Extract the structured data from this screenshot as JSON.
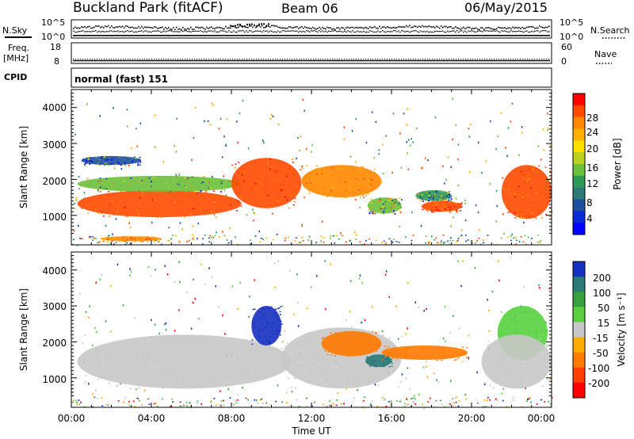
{
  "header": {
    "site": "Buckland Park (fitACF)",
    "beam": "Beam 06",
    "date": "06/May/2015"
  },
  "nsky": {
    "label": "N.Sky",
    "ticks": [
      "10^5",
      "10^0"
    ],
    "right_label": "N.Search",
    "right_ticks": [
      "10^5",
      "10^0"
    ]
  },
  "freq": {
    "label_line1": "Freq.",
    "label_line2": "[MHz]",
    "ticks": [
      "18",
      "8"
    ],
    "right_label": "Nave",
    "right_ticks": [
      "60",
      "0"
    ]
  },
  "cpid": {
    "label": "CPID",
    "text": "normal (fast) 151"
  },
  "panels": {
    "ylabel": "Slant Range [km]",
    "yticks": [
      "4000",
      "3000",
      "2000",
      "1000"
    ],
    "xticks": [
      "00:00",
      "04:00",
      "08:00",
      "12:00",
      "16:00",
      "20:00",
      "00:00"
    ],
    "xlabel": "Time UT"
  },
  "power_scale": {
    "label": "Power [dB]",
    "ticks": [
      "28",
      "24",
      "20",
      "16",
      "12",
      "8",
      "4"
    ],
    "colors": [
      "#ff0000",
      "#ff4a00",
      "#ff8800",
      "#ffb000",
      "#ffe000",
      "#bcd020",
      "#6cc03a",
      "#2e9a5a",
      "#2c7a74",
      "#1e4f9e",
      "#0a2ad8",
      "#0000ff"
    ]
  },
  "velocity_scale": {
    "label": "Velocity [m s⁻¹]",
    "ticks": [
      "200",
      "100",
      "50",
      "15",
      "-15",
      "-50",
      "-100",
      "-200"
    ],
    "colors": [
      "#1630c0",
      "#2c7a78",
      "#37a040",
      "#58d040",
      "#c8c8c8",
      "#ffae00",
      "#ff7a00",
      "#ff4000",
      "#ff0000"
    ]
  },
  "chart_data": {
    "type": "heatmap",
    "title": "Buckland Park (fitACF) Beam 06 06/May/2015",
    "xlabel": "Time UT",
    "ylabel": "Slant Range [km]",
    "xlim": [
      "00:00",
      "24:00"
    ],
    "ylim": [
      180,
      4500
    ],
    "panels": [
      {
        "name": "Power",
        "units": "dB",
        "colorbar_ticks": [
          4,
          8,
          12,
          16,
          20,
          24,
          28
        ],
        "features": [
          {
            "t": [
              0.3,
              8.5
            ],
            "range": [
              950,
              1700
            ],
            "value": 26
          },
          {
            "t": [
              0.3,
              8.5
            ],
            "range": [
              1650,
              2100
            ],
            "value": 14
          },
          {
            "t": [
              0.5,
              3.5
            ],
            "range": [
              2400,
              2650
            ],
            "value": 6
          },
          {
            "t": [
              8.0,
              11.5
            ],
            "range": [
              1200,
              2600
            ],
            "value": 27
          },
          {
            "t": [
              11.5,
              15.5
            ],
            "range": [
              1500,
              2400
            ],
            "value": 24
          },
          {
            "t": [
              14.8,
              16.5
            ],
            "range": [
              1050,
              1500
            ],
            "value": 14
          },
          {
            "t": [
              17.5,
              19.5
            ],
            "range": [
              1100,
              1400
            ],
            "value": 27
          },
          {
            "t": [
              17.2,
              19.0
            ],
            "range": [
              1400,
              1700
            ],
            "value": 12
          },
          {
            "t": [
              21.5,
              24.0
            ],
            "range": [
              900,
              2400
            ],
            "value": 26
          },
          {
            "t": [
              1.5,
              4.5
            ],
            "range": [
              280,
              420
            ],
            "value": 24
          }
        ]
      },
      {
        "name": "Velocity",
        "units": "m s⁻¹",
        "colorbar_ticks": [
          -200,
          -100,
          -50,
          -15,
          15,
          50,
          100,
          200
        ],
        "features": [
          {
            "t": [
              0.3,
              11.0
            ],
            "range": [
              700,
              2200
            ],
            "value": 0
          },
          {
            "t": [
              9.0,
              10.5
            ],
            "range": [
              1900,
              3000
            ],
            "value": 210
          },
          {
            "t": [
              10.5,
              16.5
            ],
            "range": [
              700,
              2400
            ],
            "value": 0
          },
          {
            "t": [
              12.5,
              15.5
            ],
            "range": [
              1600,
              2300
            ],
            "value": -60
          },
          {
            "t": [
              14.7,
              16.0
            ],
            "range": [
              1300,
              1650
            ],
            "value": 150
          },
          {
            "t": [
              15.5,
              19.8
            ],
            "range": [
              1500,
              1900
            ],
            "value": -90
          },
          {
            "t": [
              21.3,
              23.8
            ],
            "range": [
              1500,
              3000
            ],
            "value": 40
          },
          {
            "t": [
              20.5,
              24.0
            ],
            "range": [
              700,
              2200
            ],
            "value": 0
          }
        ]
      }
    ]
  }
}
